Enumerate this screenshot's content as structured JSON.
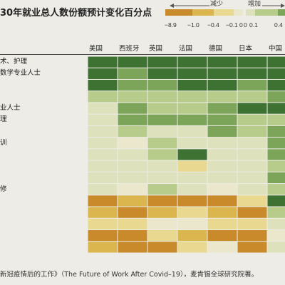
{
  "chart_data": {
    "type": "heatmap",
    "title": "30年就业总人数份额预计变化百分点",
    "columns": [
      "美国",
      "西班牙",
      "英国",
      "法国",
      "德国",
      "日本",
      "中国"
    ],
    "rows": [
      "术、护理",
      "数学专业人士",
      "",
      "",
      "业人士",
      "理",
      "",
      "训",
      "",
      "",
      "",
      "修",
      "",
      "",
      "",
      "",
      ""
    ],
    "values": [
      [
        1.2,
        1.2,
        1.2,
        1.2,
        1.2,
        1.2,
        1.2
      ],
      [
        1.2,
        0.6,
        1.2,
        1.2,
        1.2,
        1.2,
        1.2
      ],
      [
        1.2,
        0.6,
        0.6,
        1.2,
        1.2,
        0.6,
        1.2
      ],
      [
        0.2,
        0.2,
        0.2,
        0.2,
        0.2,
        0.2,
        0.6
      ],
      [
        0.05,
        0.6,
        0.2,
        0.2,
        0.6,
        1.2,
        1.2
      ],
      [
        0.05,
        0.6,
        0.6,
        0.6,
        0.6,
        0.2,
        0.2
      ],
      [
        0.05,
        0.2,
        0.05,
        0.05,
        0.6,
        0.2,
        0.6
      ],
      [
        0.05,
        -0.05,
        0.2,
        0.05,
        0.05,
        0.05,
        0.6
      ],
      [
        0.05,
        0.05,
        0.2,
        1.2,
        0.05,
        0.05,
        0.6
      ],
      [
        0.05,
        0.05,
        0.05,
        -0.2,
        0.05,
        0.05,
        0.2
      ],
      [
        0.05,
        0.05,
        0.05,
        0.05,
        0.05,
        0.05,
        0.6
      ],
      [
        0.05,
        -0.05,
        0.2,
        0.05,
        -0.05,
        0.05,
        0.2
      ],
      [
        -1.5,
        -0.7,
        -1.5,
        -1.5,
        -1.5,
        -0.2,
        1.2
      ],
      [
        -0.7,
        -1.5,
        -0.7,
        -0.2,
        -0.7,
        -1.5,
        0.2
      ],
      [
        -0.2,
        -0.2,
        -0.05,
        -0.05,
        -0.2,
        -0.2,
        0.05
      ],
      [
        -1.5,
        -1.5,
        -0.2,
        -0.7,
        -1.5,
        -1.5,
        -0.05
      ],
      [
        -0.7,
        -1.5,
        -1.5,
        -0.2,
        -0.05,
        -1.5,
        0.05
      ]
    ],
    "legend": {
      "decrease_label": "减少",
      "increase_label": "增加",
      "ticks": [
        "−8.9",
        "−1.0",
        "−0.4",
        "−0.1",
        "0",
        "0",
        "0.1",
        "0.4"
      ],
      "decrease_colors": [
        "#c98a2c",
        "#dbb64e",
        "#e9d890",
        "#ebe7cc"
      ],
      "increase_colors": [
        "#dde2bc",
        "#b7cb8a",
        "#7da559",
        "#3e7232"
      ],
      "placement": "top-right"
    },
    "grid": false
  },
  "source_caption": "新冠疫情后的工作》（The Future of Work After Covid–19），麦肯锡全球研究院著。",
  "icons": {
    "decrease_arrow": "arrow-left-icon",
    "increase_arrow": "arrow-right-icon"
  }
}
